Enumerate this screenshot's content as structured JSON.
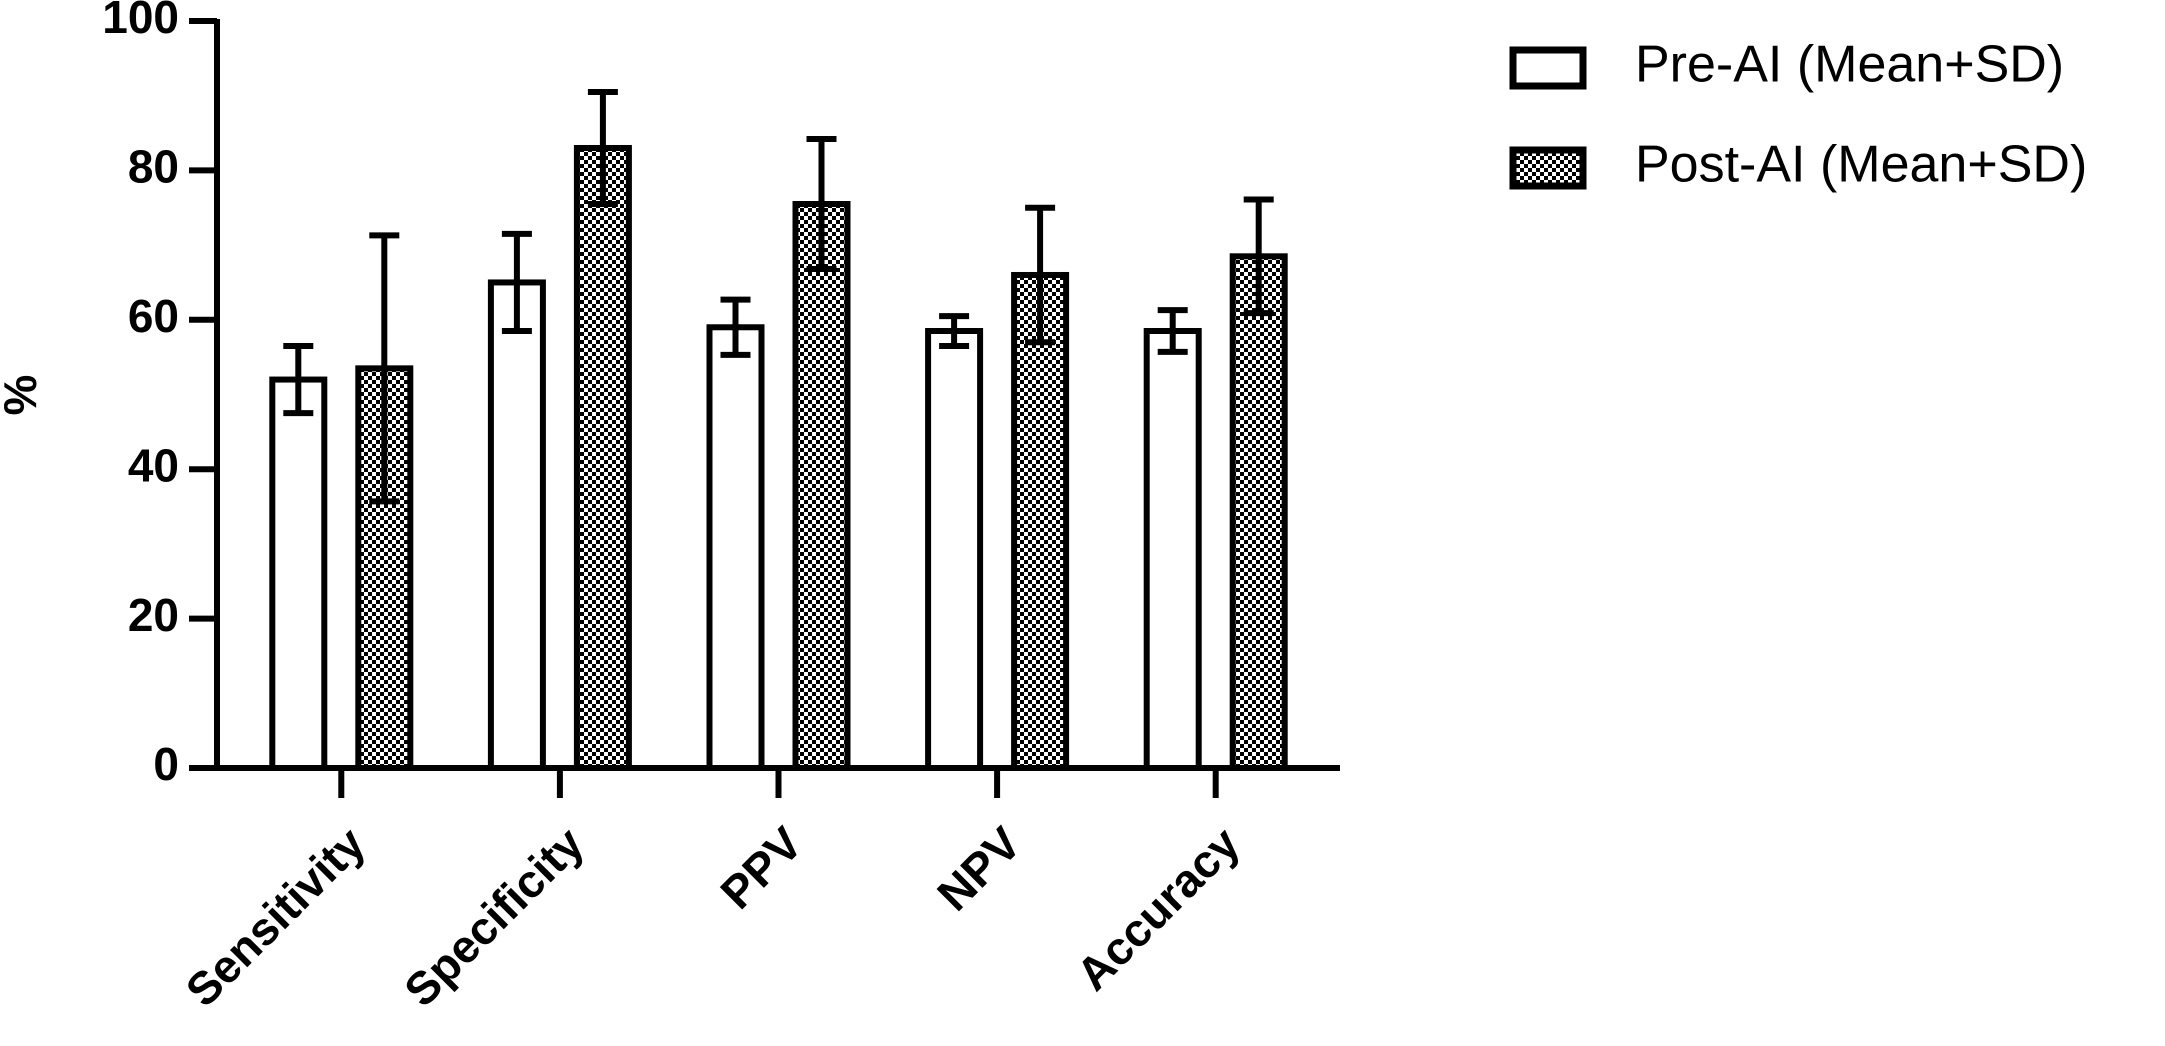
{
  "chart_data": {
    "type": "bar",
    "y_label": "%",
    "categories": [
      "Sensitivity",
      "Specificity",
      "PPV",
      "NPV",
      "Accuracy"
    ],
    "series": [
      {
        "name": "Pre-AI (Mean+SD)",
        "color": "#ffffff",
        "values": [
          52,
          65,
          59,
          58.5,
          58.5
        ],
        "errors": [
          4.5,
          6.5,
          3.7,
          2,
          2.8
        ]
      },
      {
        "name": "Post-AI (Mean+SD)",
        "color": "#000000",
        "values": [
          53.5,
          83,
          75.5,
          66,
          68.5
        ],
        "errors": [
          17.8,
          7.5,
          8.7,
          9,
          7.6
        ]
      }
    ],
    "ylim": [
      0,
      100
    ],
    "yticks": [
      0,
      20,
      40,
      60,
      80,
      100
    ],
    "legend": "top-right"
  }
}
